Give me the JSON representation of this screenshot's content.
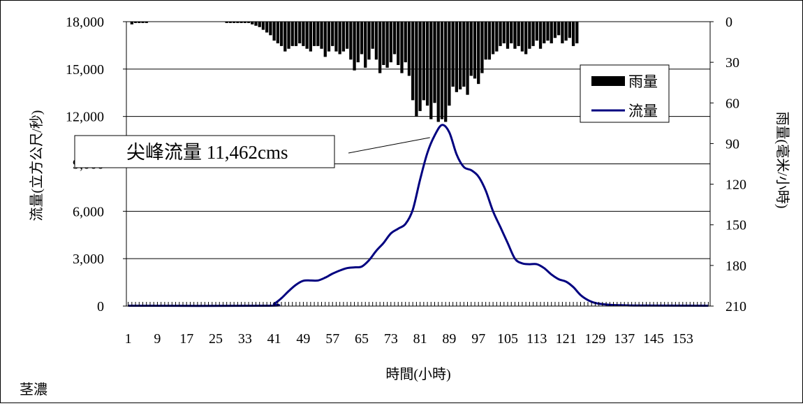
{
  "chart_data": {
    "type": "bar+line",
    "station_label": "茎濃",
    "x_label": "時間(小時)",
    "y_left_label": "流量(立方公尺/秒)",
    "y_right_label": "雨量(毫米/小時)",
    "y_left_ticks": [
      "0",
      "3,000",
      "6,000",
      "9,000",
      "12,000",
      "15,000",
      "18,000"
    ],
    "y_right_ticks": [
      "0",
      "30",
      "60",
      "90",
      "120",
      "150",
      "180",
      "210"
    ],
    "x_ticks": [
      "1",
      "9",
      "17",
      "25",
      "33",
      "41",
      "49",
      "57",
      "65",
      "73",
      "81",
      "89",
      "97",
      "105",
      "113",
      "121",
      "129",
      "137",
      "145",
      "153"
    ],
    "y_left_range": [
      0,
      18000
    ],
    "y_right_range": [
      0,
      210
    ],
    "x_range": [
      1,
      160
    ],
    "legend": {
      "rain": "雨量",
      "flow": "流量",
      "placement": "top-right"
    },
    "annotation": {
      "text": "尖峰流量 11,462cms",
      "x": 86,
      "y": 11462
    },
    "flow_color": "#000080",
    "rain_color": "#000000",
    "flow": {
      "name": "流量",
      "points": [
        [
          1,
          20
        ],
        [
          39,
          20
        ],
        [
          41,
          150
        ],
        [
          43,
          500
        ],
        [
          45,
          950
        ],
        [
          47,
          1350
        ],
        [
          49,
          1600
        ],
        [
          51,
          1620
        ],
        [
          53,
          1620
        ],
        [
          55,
          1800
        ],
        [
          57,
          2050
        ],
        [
          59,
          2250
        ],
        [
          61,
          2400
        ],
        [
          63,
          2450
        ],
        [
          65,
          2500
        ],
        [
          67,
          2900
        ],
        [
          69,
          3500
        ],
        [
          71,
          4000
        ],
        [
          73,
          4600
        ],
        [
          75,
          4900
        ],
        [
          77,
          5200
        ],
        [
          79,
          6100
        ],
        [
          81,
          8000
        ],
        [
          83,
          9700
        ],
        [
          85,
          10800
        ],
        [
          87,
          11462
        ],
        [
          89,
          11000
        ],
        [
          91,
          9600
        ],
        [
          93,
          8800
        ],
        [
          95,
          8600
        ],
        [
          97,
          8200
        ],
        [
          99,
          7300
        ],
        [
          101,
          6000
        ],
        [
          103,
          5000
        ],
        [
          105,
          4000
        ],
        [
          107,
          3000
        ],
        [
          109,
          2700
        ],
        [
          111,
          2650
        ],
        [
          113,
          2650
        ],
        [
          115,
          2400
        ],
        [
          117,
          2000
        ],
        [
          119,
          1700
        ],
        [
          121,
          1550
        ],
        [
          123,
          1200
        ],
        [
          125,
          700
        ],
        [
          127,
          380
        ],
        [
          129,
          200
        ],
        [
          131,
          120
        ],
        [
          133,
          80
        ],
        [
          137,
          50
        ],
        [
          141,
          30
        ],
        [
          160,
          20
        ]
      ]
    },
    "rain": {
      "name": "雨量",
      "hours": [
        2,
        3,
        4,
        5,
        6,
        28,
        29,
        30,
        31,
        32,
        33,
        34,
        35,
        36,
        37,
        38,
        39,
        40,
        41,
        42,
        43,
        44,
        45,
        46,
        47,
        48,
        49,
        50,
        51,
        52,
        53,
        54,
        55,
        56,
        57,
        58,
        59,
        60,
        61,
        62,
        63,
        64,
        65,
        66,
        67,
        68,
        69,
        70,
        71,
        72,
        73,
        74,
        75,
        76,
        77,
        78,
        79,
        80,
        81,
        82,
        83,
        84,
        85,
        86,
        87,
        88,
        89,
        90,
        91,
        92,
        93,
        94,
        95,
        96,
        97,
        98,
        99,
        100,
        101,
        102,
        103,
        104,
        105,
        106,
        107,
        108,
        109,
        110,
        111,
        112,
        113,
        114,
        115,
        116,
        117,
        118,
        119,
        120,
        121,
        122,
        123,
        124
      ],
      "values": [
        2,
        1,
        1,
        1,
        1,
        1,
        1,
        1,
        1,
        1,
        1,
        1,
        2,
        3,
        4,
        6,
        8,
        10,
        14,
        16,
        18,
        22,
        20,
        18,
        18,
        16,
        18,
        20,
        22,
        18,
        18,
        20,
        26,
        22,
        18,
        22,
        24,
        22,
        20,
        28,
        36,
        30,
        24,
        34,
        28,
        20,
        28,
        38,
        32,
        34,
        30,
        24,
        32,
        38,
        30,
        40,
        58,
        70,
        66,
        58,
        62,
        72,
        60,
        74,
        72,
        74,
        62,
        48,
        52,
        50,
        48,
        54,
        40,
        42,
        46,
        38,
        28,
        28,
        24,
        22,
        18,
        16,
        20,
        16,
        20,
        18,
        22,
        24,
        20,
        18,
        14,
        20,
        16,
        14,
        16,
        12,
        10,
        16,
        14,
        12,
        18,
        16
      ]
    }
  }
}
